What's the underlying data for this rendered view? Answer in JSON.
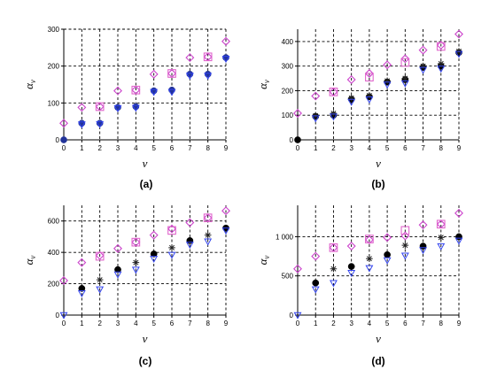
{
  "colors": {
    "diamond": "#cc44cc",
    "square": "#e066cc",
    "circle": "#000000",
    "circle_first": "#223399",
    "triangle": "#3344ee",
    "star": "#222222",
    "grid": "#000000"
  },
  "chart_data": [
    {
      "type": "scatter",
      "label": "(a)",
      "xlabel": "v",
      "ylabel": "α_v",
      "xlim": [
        0,
        9
      ],
      "ylim": [
        0,
        300
      ],
      "xticks": [
        "0",
        "1",
        "2",
        "3",
        "4",
        "5",
        "6",
        "7",
        "8",
        "9"
      ],
      "yticks": [
        0,
        100,
        200,
        300
      ],
      "ytick_labels": [
        "0",
        "100",
        "200",
        "300"
      ],
      "grid": true,
      "series": [
        {
          "marker": "diamond",
          "x": [
            0,
            1,
            2,
            3,
            4,
            5,
            6,
            7,
            8,
            9
          ],
          "y": [
            45,
            88,
            90,
            133,
            135,
            178,
            180,
            223,
            225,
            267
          ]
        },
        {
          "marker": "square",
          "x": [
            2,
            4,
            6,
            8
          ],
          "y": [
            90,
            135,
            180,
            225
          ]
        },
        {
          "marker": "circle",
          "x": [
            0,
            1,
            2,
            3,
            4,
            5,
            6,
            7,
            8,
            9
          ],
          "y": [
            0,
            45,
            45,
            88,
            90,
            133,
            135,
            178,
            178,
            223
          ]
        },
        {
          "marker": "triangle",
          "x": [
            1,
            2,
            3,
            4,
            5,
            6,
            7,
            8,
            9
          ],
          "y": [
            42,
            43,
            86,
            87,
            130,
            130,
            174,
            174,
            220
          ]
        }
      ]
    },
    {
      "type": "scatter",
      "label": "(b)",
      "xlabel": "v",
      "ylabel": "α_v",
      "xlim": [
        0,
        9
      ],
      "ylim": [
        0,
        450
      ],
      "xticks": [
        "0",
        "1",
        "2",
        "3",
        "4",
        "5",
        "6",
        "7",
        "8",
        "9"
      ],
      "yticks": [
        0,
        100,
        200,
        300,
        400
      ],
      "ytick_labels": [
        "0",
        "100",
        "200",
        "300",
        "400"
      ],
      "grid": true,
      "series": [
        {
          "marker": "diamond",
          "x": [
            0,
            1,
            2,
            3,
            4,
            5,
            6,
            7,
            8,
            9
          ],
          "y": [
            108,
            178,
            195,
            245,
            270,
            305,
            330,
            365,
            385,
            430
          ]
        },
        {
          "marker": "square",
          "x": [
            2,
            4,
            6,
            8
          ],
          "y": [
            195,
            255,
            315,
            380
          ]
        },
        {
          "marker": "circle",
          "x": [
            0,
            1,
            2,
            3,
            4,
            5,
            6,
            7,
            8,
            9
          ],
          "y": [
            0,
            95,
            100,
            165,
            175,
            235,
            245,
            295,
            300,
            355
          ]
        },
        {
          "marker": "star",
          "x": [
            1,
            2,
            3,
            4,
            5,
            6,
            7,
            8,
            9
          ],
          "y": [
            98,
            108,
            170,
            180,
            240,
            250,
            300,
            310,
            360
          ]
        },
        {
          "marker": "triangle",
          "x": [
            1,
            2,
            3,
            4,
            5,
            6,
            7,
            8,
            9
          ],
          "y": [
            88,
            95,
            155,
            165,
            225,
            230,
            285,
            290,
            350
          ]
        }
      ]
    },
    {
      "type": "scatter",
      "label": "(c)",
      "xlabel": "v",
      "ylabel": "α_v",
      "xlim": [
        0,
        9
      ],
      "ylim": [
        0,
        700
      ],
      "xticks": [
        "0",
        "1",
        "2",
        "3",
        "4",
        "5",
        "6",
        "7",
        "8",
        "9"
      ],
      "yticks": [
        0,
        200,
        400,
        600
      ],
      "ytick_labels": [
        "0",
        "200",
        "400",
        "600"
      ],
      "grid": true,
      "series": [
        {
          "marker": "diamond",
          "x": [
            0,
            1,
            2,
            3,
            4,
            5,
            6,
            7,
            8,
            9
          ],
          "y": [
            220,
            335,
            380,
            425,
            465,
            510,
            550,
            590,
            620,
            665
          ]
        },
        {
          "marker": "square",
          "x": [
            2,
            4,
            6,
            8
          ],
          "y": [
            375,
            465,
            540,
            620
          ]
        },
        {
          "marker": "circle",
          "x": [
            1,
            3,
            5,
            7,
            9
          ],
          "y": [
            170,
            290,
            390,
            475,
            555
          ]
        },
        {
          "marker": "star",
          "x": [
            2,
            4,
            6,
            8
          ],
          "y": [
            225,
            335,
            430,
            510
          ]
        },
        {
          "marker": "triangle",
          "x": [
            0,
            1,
            2,
            3,
            4,
            5,
            6,
            7,
            8,
            9
          ],
          "y": [
            0,
            140,
            165,
            260,
            290,
            360,
            385,
            450,
            470,
            540
          ]
        }
      ]
    },
    {
      "type": "scatter",
      "label": "(d)",
      "xlabel": "v",
      "ylabel": "α_v",
      "xlim": [
        0,
        9
      ],
      "ylim": [
        0,
        1400
      ],
      "xticks": [
        "0",
        "1",
        "2",
        "3",
        "4",
        "5",
        "6",
        "7",
        "8",
        "9"
      ],
      "yticks": [
        0,
        500,
        1000
      ],
      "ytick_labels": [
        "0",
        "500",
        "1 000"
      ],
      "grid": true,
      "series": [
        {
          "marker": "diamond",
          "x": [
            0,
            1,
            2,
            3,
            4,
            5,
            6,
            7,
            8,
            9
          ],
          "y": [
            590,
            750,
            860,
            880,
            960,
            990,
            1010,
            1150,
            1160,
            1300
          ]
        },
        {
          "marker": "square",
          "x": [
            2,
            4,
            6,
            8
          ],
          "y": [
            860,
            970,
            1080,
            1160
          ]
        },
        {
          "marker": "circle",
          "x": [
            1,
            3,
            5,
            7,
            9
          ],
          "y": [
            410,
            620,
            770,
            880,
            1000
          ]
        },
        {
          "marker": "star",
          "x": [
            2,
            4,
            6,
            8
          ],
          "y": [
            590,
            720,
            890,
            990
          ]
        },
        {
          "marker": "triangle",
          "x": [
            0,
            1,
            2,
            3,
            4,
            5,
            6,
            7,
            8,
            9
          ],
          "y": [
            0,
            330,
            410,
            540,
            600,
            700,
            760,
            830,
            880,
            950
          ]
        }
      ]
    }
  ]
}
